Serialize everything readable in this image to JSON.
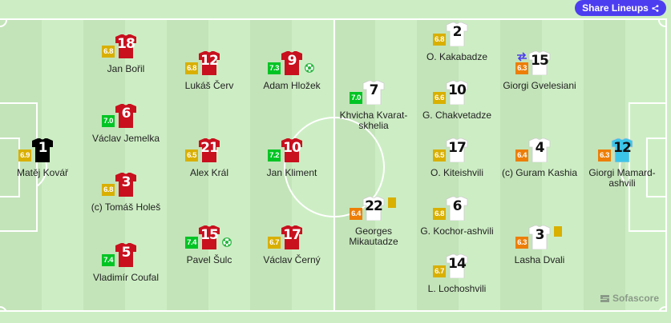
{
  "header": {
    "share_label": "Share Lineups"
  },
  "colors": {
    "rating_green": "#00c424",
    "rating_yellow": "#d9af00",
    "rating_orange": "#ed7e07",
    "home_kit": "#c8101e",
    "home_gk_kit": "#000000",
    "away_kit": "#ffffff",
    "away_gk_kit": "#3cc4e8",
    "card_yellow": "#d9af00",
    "share_button": "#4d3df0"
  },
  "home": {
    "players": [
      {
        "number": "1",
        "name": "Matěj Kovář",
        "rating": "6.9",
        "gk": true
      },
      {
        "number": "18",
        "name": "Jan Bořil",
        "rating": "6.8"
      },
      {
        "number": "6",
        "name": "Václav Jemelka",
        "rating": "7.0"
      },
      {
        "number": "3",
        "name": "(c) Tomáš Holeš",
        "rating": "6.8"
      },
      {
        "number": "5",
        "name": "Vladimír Coufal",
        "rating": "7.4"
      },
      {
        "number": "12",
        "name": "Lukáš Červ",
        "rating": "6.8"
      },
      {
        "number": "21",
        "name": "Alex Král",
        "rating": "6.5"
      },
      {
        "number": "15",
        "name": "Pavel Šulc",
        "rating": "7.4",
        "goal": true
      },
      {
        "number": "9",
        "name": "Adam Hložek",
        "rating": "7.3",
        "goal": true
      },
      {
        "number": "10",
        "name": "Jan Kliment",
        "rating": "7.2"
      },
      {
        "number": "17",
        "name": "Václav Černý",
        "rating": "6.7"
      }
    ]
  },
  "away": {
    "players": [
      {
        "number": "7",
        "name": "Khvicha Kvarat-skhelia",
        "rating": "7.0"
      },
      {
        "number": "22",
        "name": "Georges Mikautadze",
        "rating": "6.4",
        "yellow_card": true
      },
      {
        "number": "2",
        "name": "O. Kakabadze",
        "rating": "6.8"
      },
      {
        "number": "10",
        "name": "G. Chakvetadze",
        "rating": "6.6"
      },
      {
        "number": "17",
        "name": "O. Kiteishvili",
        "rating": "6.5"
      },
      {
        "number": "6",
        "name": "G. Kochor-ashvili",
        "rating": "6.8"
      },
      {
        "number": "14",
        "name": "L. Lochoshvili",
        "rating": "6.7"
      },
      {
        "number": "15",
        "name": "Giorgi Gvelesiani",
        "rating": "6.3",
        "substituted": true
      },
      {
        "number": "4",
        "name": "(c) Guram Kashia",
        "rating": "6.4"
      },
      {
        "number": "3",
        "name": "Lasha Dvali",
        "rating": "6.3",
        "yellow_card": true
      },
      {
        "number": "12",
        "name": "Giorgi Mamard-ashvili",
        "rating": "6.3",
        "gk": true
      }
    ]
  },
  "branding": {
    "logo_text": "Sofascore"
  }
}
